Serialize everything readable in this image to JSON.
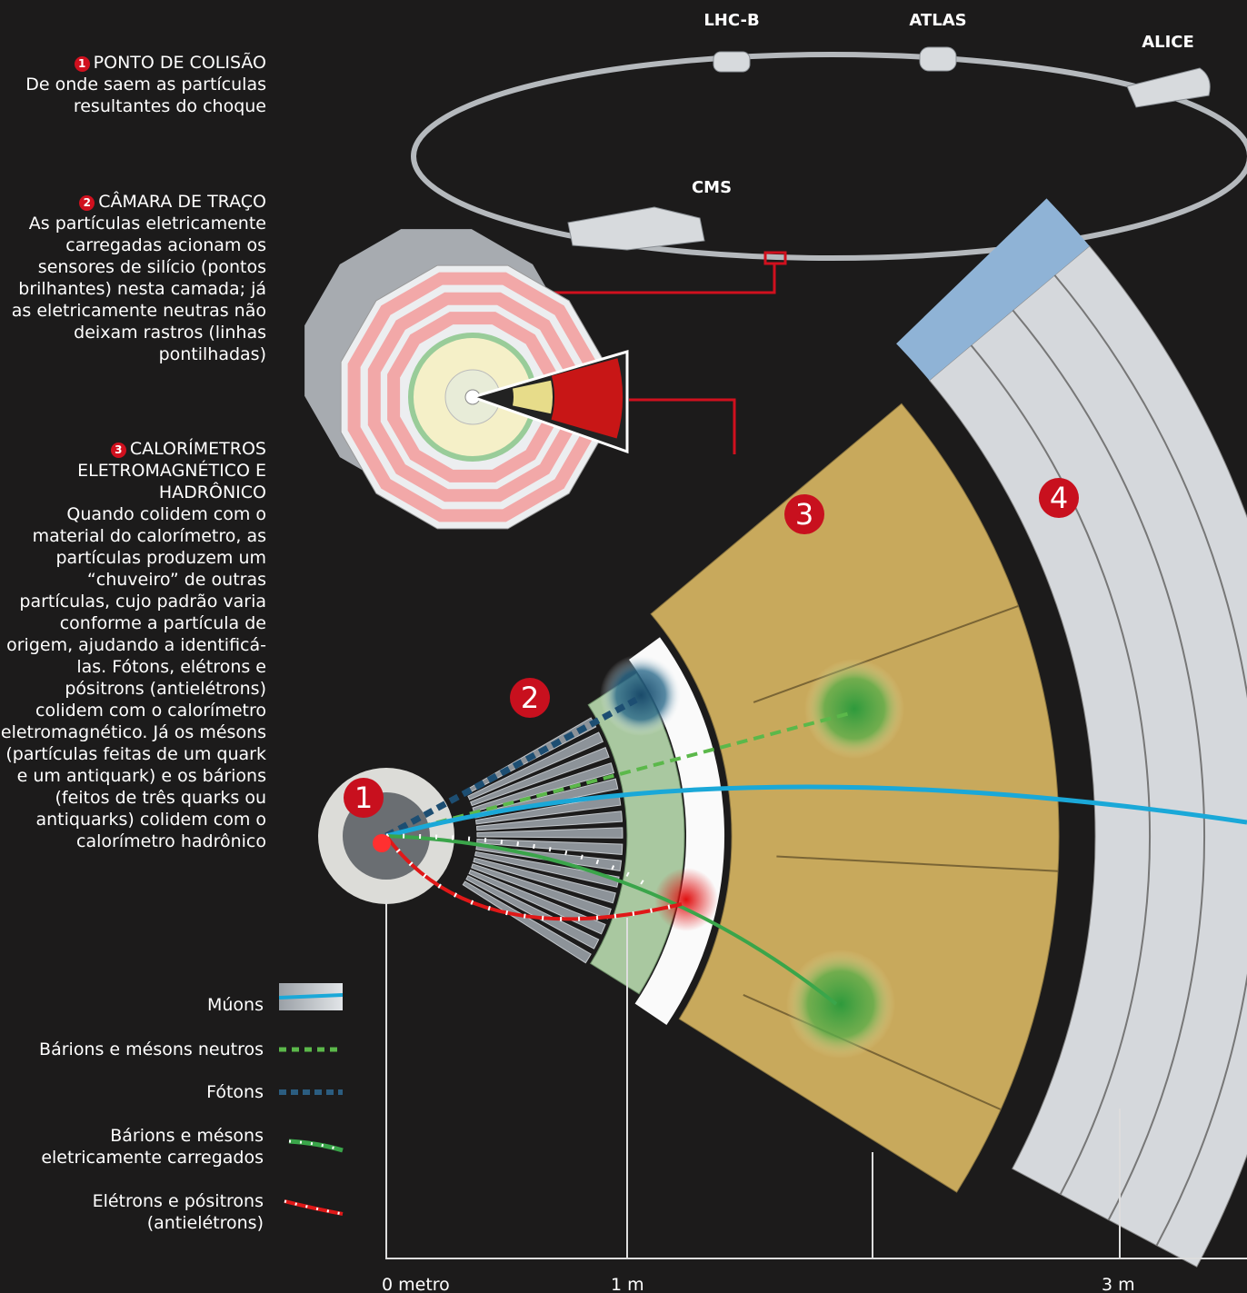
{
  "ring": {
    "labels": [
      "LHC-B",
      "ATLAS",
      "ALICE",
      "CMS"
    ]
  },
  "notes": [
    {
      "number": "1",
      "title": "PONTO DE COLISÃO",
      "text": "De onde saem as partículas resultantes do choque"
    },
    {
      "number": "2",
      "title": "CÂMARA DE TRAÇO",
      "text": "As partículas eletricamente carregadas acionam os sensores de silício (pontos brilhantes) nesta camada; já as eletricamente neutras não deixam rastros (linhas pontilhadas)"
    },
    {
      "number": "3",
      "title": "CALORÍMETROS ELETROMAGNÉTICO E HADRÔNICO",
      "text": "Quando colidem com o material do calorímetro, as partículas produzem um “chuveiro” de outras partículas, cujo padrão varia conforme a partícula de origem, ajudando a identificá-las. Fótons, elétrons e pósitrons (antielétrons) colidem com o calorímetro eletromagnético. Já os mésons (partículas feitas de um quark e um antiquark) e os bárions (feitos de três quarks ou antiquarks) colidem com o calorímetro hadrônico"
    }
  ],
  "markers": [
    "1",
    "2",
    "3",
    "4"
  ],
  "legend": [
    "Múons",
    "Bárions e mésons neutros",
    "Fótons",
    "Bárions e mésons eletricamente carregados",
    "Elétrons e pósitrons (antielétrons)"
  ],
  "scale": [
    "0 metro",
    "1 m",
    "3 m"
  ]
}
